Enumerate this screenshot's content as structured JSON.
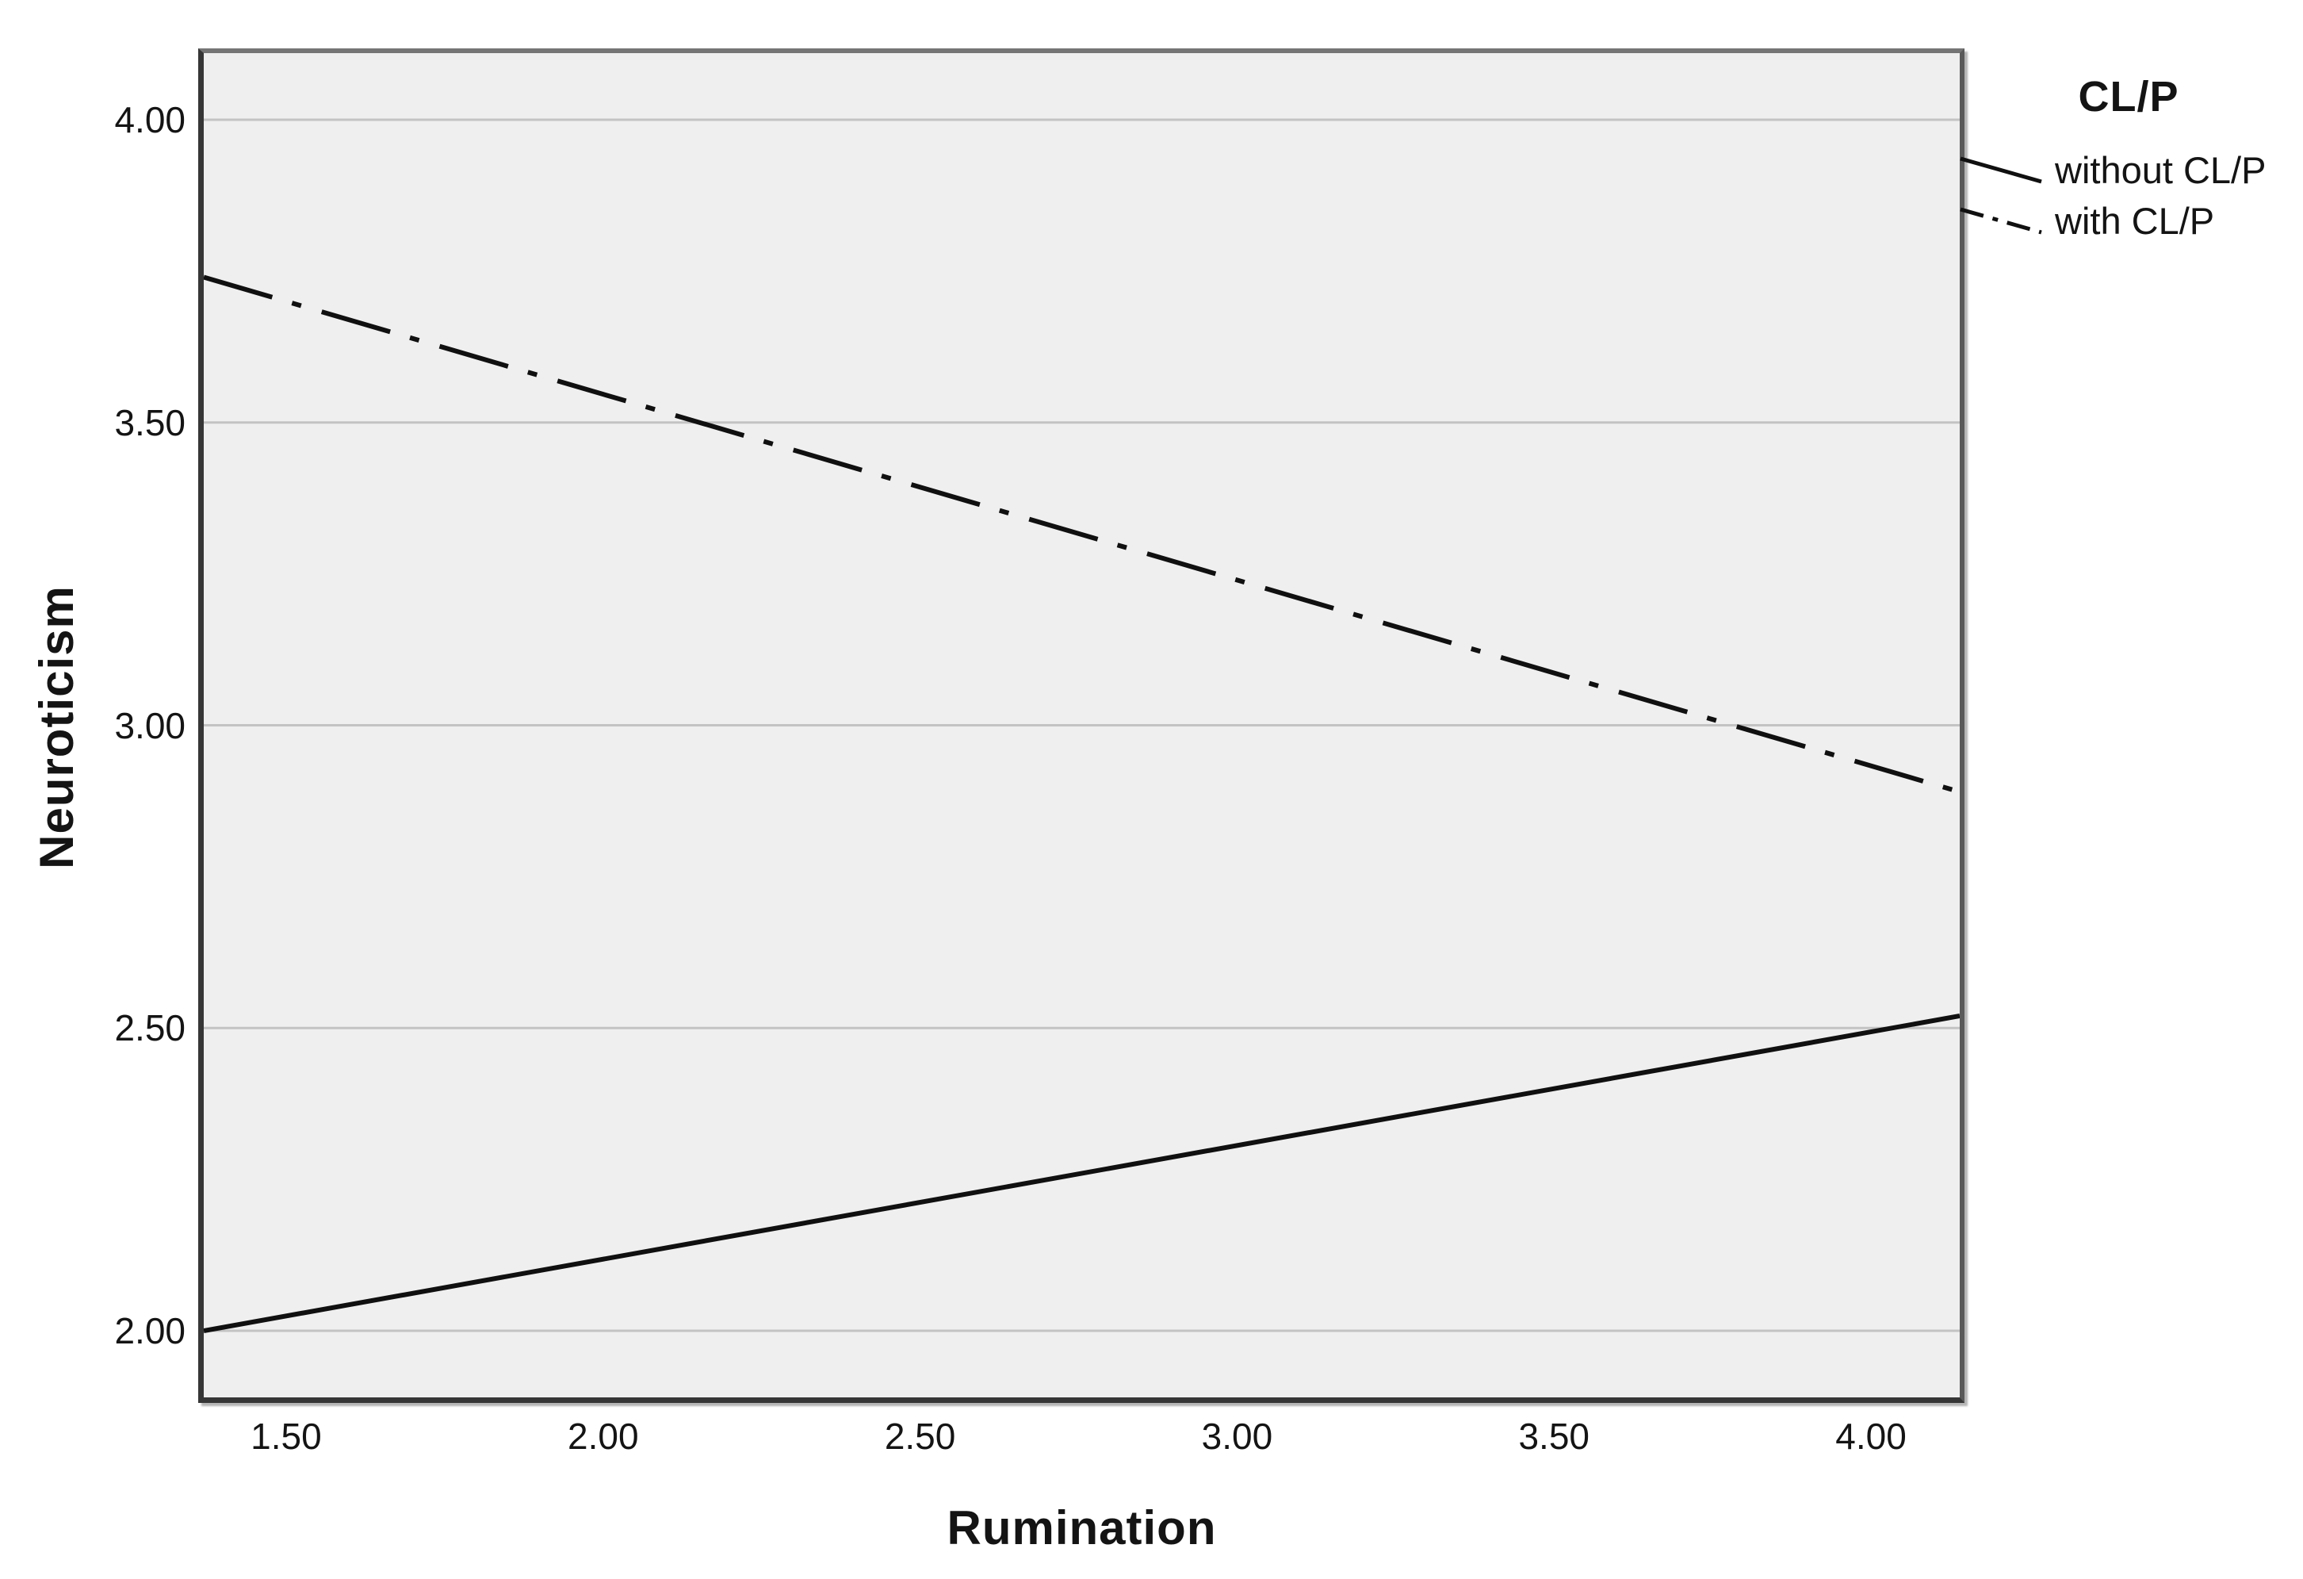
{
  "chart_data": {
    "type": "line",
    "xlabel": "Rumination",
    "ylabel": "Neuroticism",
    "x_axis": {
      "range": [
        1.37,
        4.14
      ],
      "tick_values": [
        1.5,
        2.0,
        2.5,
        3.0,
        3.5,
        4.0
      ],
      "tick_labels": [
        "1.50",
        "2.00",
        "2.50",
        "3.00",
        "3.50",
        "4.00"
      ]
    },
    "y_axis": {
      "range": [
        1.89,
        4.11
      ],
      "tick_values": [
        2.0,
        2.5,
        3.0,
        3.5,
        4.0
      ],
      "tick_labels": [
        "2.00",
        "2.50",
        "3.00",
        "3.50",
        "4.00"
      ]
    },
    "grid": "horizontal",
    "legend": {
      "title": "CL/P",
      "position": "top-right",
      "entries": [
        "without CL/P",
        "with CL/P"
      ]
    },
    "series": [
      {
        "name": "without CL/P",
        "line_style": "solid",
        "color": "#101010",
        "points": [
          [
            1.37,
            2.0
          ],
          [
            4.14,
            2.52
          ]
        ]
      },
      {
        "name": "with CL/P",
        "line_style": "dash-dot",
        "color": "#101010",
        "points": [
          [
            1.37,
            3.74
          ],
          [
            4.14,
            2.89
          ]
        ]
      }
    ],
    "colors": {
      "plot_background": "#efefef",
      "gridline": "#c3c3c3",
      "frame": "#3a3a3a",
      "text": "#141414"
    }
  }
}
